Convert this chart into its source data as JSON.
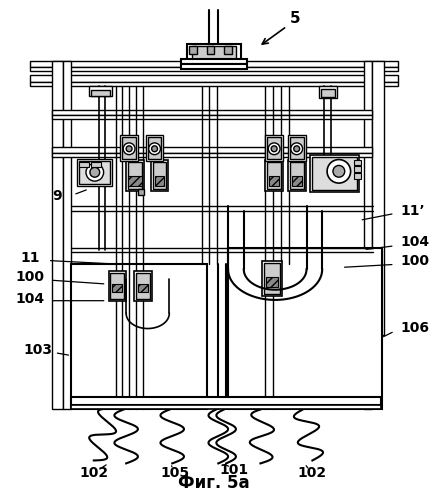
{
  "title": "Фиг. 5а",
  "title_fontsize": 12,
  "bg_color": "#ffffff",
  "line_color": "#000000",
  "label_5": "5",
  "label_9": "9",
  "label_11": "11",
  "label_11p": "11’",
  "label_100a": "100",
  "label_100b": "100",
  "label_101": "101",
  "label_102a": "102",
  "label_102b": "102",
  "label_103": "103",
  "label_104a": "104",
  "label_104b": "104",
  "label_105": "105",
  "label_106": "106",
  "fig_width": 4.35,
  "fig_height": 4.99,
  "dpi": 100
}
